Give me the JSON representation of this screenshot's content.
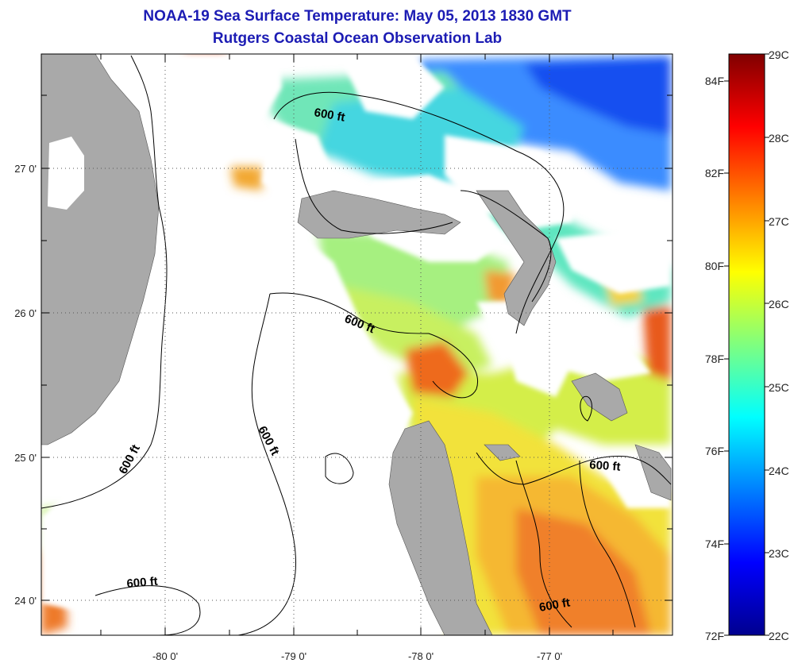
{
  "header": {
    "title": "NOAA-19 Sea Surface Temperature:  May 05, 2013 1830 GMT",
    "subtitle": "Rutgers Coastal Ocean Observation Lab"
  },
  "map": {
    "lat_labels": [
      "27 0'",
      "26 0'",
      "25 0'",
      "24 0'"
    ],
    "lon_labels": [
      "-80 0'",
      "-79 0'",
      "-78 0'",
      "-77 0'"
    ],
    "isobath_labels": [
      "600 ft",
      "600 ft",
      "600 ft",
      "600 ft",
      "600 ft",
      "600 ft"
    ],
    "colors": {
      "land": "#a9a9a9",
      "cloud": "#ffffff",
      "grid": "#555555"
    }
  },
  "colorbar": {
    "fahrenheit_labels": [
      "84F",
      "82F",
      "80F",
      "78F",
      "76F",
      "74F",
      "72F"
    ],
    "celsius_labels": [
      "29C",
      "28C",
      "27C",
      "26C",
      "25C",
      "24C",
      "23C",
      "22C"
    ],
    "range_celsius": [
      22,
      29
    ],
    "colormap": "jet"
  }
}
